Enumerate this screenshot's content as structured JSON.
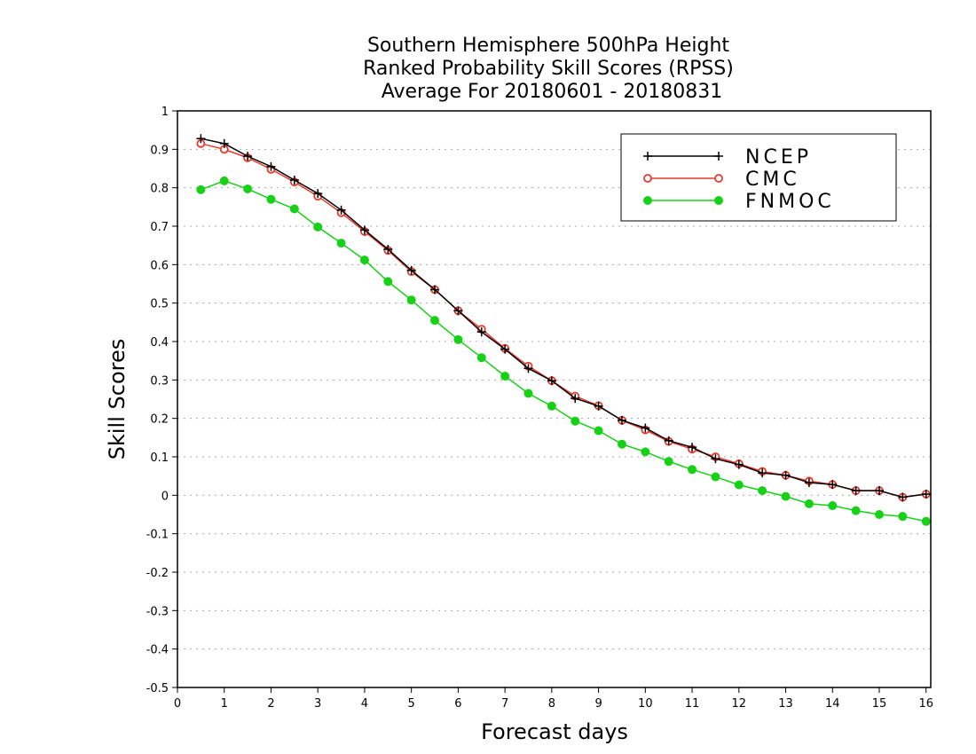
{
  "chart_data": {
    "type": "line",
    "title_lines": [
      "Southern Hemisphere 500hPa Height",
      "Ranked Probability Skill Scores (RPSS)",
      "Average For 20180601 - 20180831"
    ],
    "xlabel": "Forecast days",
    "ylabel": "Skill Scores",
    "xlim": [
      0,
      16.1
    ],
    "ylim": [
      -0.5,
      1
    ],
    "x_ticks": [
      "0",
      "1",
      "2",
      "3",
      "4",
      "5",
      "6",
      "7",
      "8",
      "9",
      "10",
      "11",
      "12",
      "13",
      "14",
      "15",
      "16"
    ],
    "y_ticks": [
      "1",
      "0.9",
      "0.8",
      "0.7",
      "0.6",
      "0.5",
      "0.4",
      "0.3",
      "0.2",
      "0.1",
      "0",
      "-0.1",
      "-0.2",
      "-0.3",
      "-0.4",
      "-0.5"
    ],
    "grid": "horizontal dotted",
    "legend_position": "top-right",
    "x": [
      0.5,
      1,
      1.5,
      2,
      2.5,
      3,
      3.5,
      4,
      4.5,
      5,
      5.5,
      6,
      6.5,
      7,
      7.5,
      8,
      8.5,
      9,
      9.5,
      10,
      10.5,
      11,
      11.5,
      12,
      12.5,
      13,
      13.5,
      14,
      14.5,
      15,
      15.5,
      16
    ],
    "series": [
      {
        "name": "NCEP",
        "color": "#000000",
        "marker": "plus",
        "values": [
          0.928,
          0.915,
          0.882,
          0.855,
          0.82,
          0.785,
          0.742,
          0.69,
          0.64,
          0.585,
          0.535,
          0.48,
          0.425,
          0.38,
          0.33,
          0.298,
          0.252,
          0.232,
          0.195,
          0.175,
          0.142,
          0.125,
          0.095,
          0.08,
          0.058,
          0.052,
          0.033,
          0.028,
          0.012,
          0.012,
          -0.005,
          0.003
        ]
      },
      {
        "name": "CMC",
        "color": "#e8392d",
        "marker": "open-circle",
        "values": [
          0.915,
          0.9,
          0.878,
          0.848,
          0.815,
          0.778,
          0.735,
          0.686,
          0.637,
          0.582,
          0.535,
          0.48,
          0.432,
          0.382,
          0.336,
          0.298,
          0.258,
          0.233,
          0.195,
          0.17,
          0.14,
          0.12,
          0.1,
          0.082,
          0.062,
          0.052,
          0.037,
          0.028,
          0.012,
          0.012,
          -0.005,
          0.003
        ]
      },
      {
        "name": "FNMOC",
        "color": "#16d116",
        "marker": "filled-circle",
        "values": [
          0.795,
          0.818,
          0.797,
          0.77,
          0.745,
          0.698,
          0.656,
          0.612,
          0.556,
          0.508,
          0.455,
          0.405,
          0.358,
          0.31,
          0.265,
          0.232,
          0.193,
          0.168,
          0.133,
          0.113,
          0.088,
          0.067,
          0.048,
          0.027,
          0.012,
          -0.003,
          -0.022,
          -0.027,
          -0.04,
          -0.05,
          -0.055,
          -0.068
        ]
      }
    ]
  }
}
